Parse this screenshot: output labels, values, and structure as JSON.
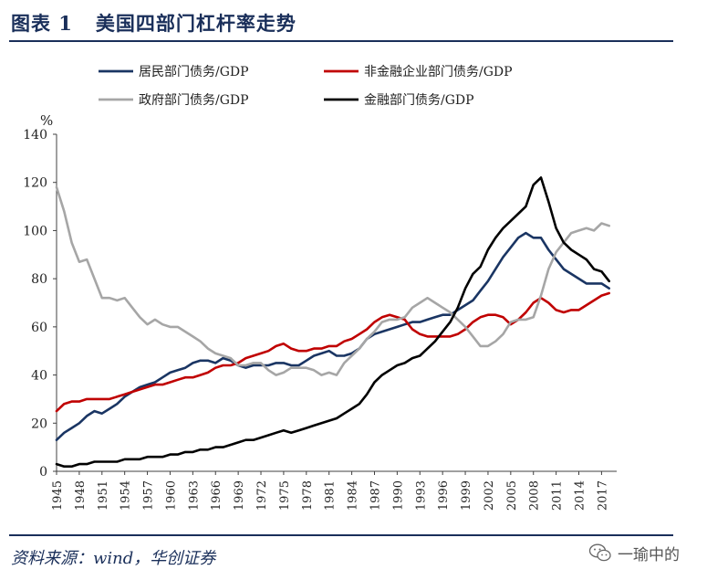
{
  "figure": {
    "label": "图表 1",
    "title": "美国四部门杠杆率走势",
    "source": "资料来源：wind，华创证券",
    "watermark": "一瑜中的"
  },
  "chart_data": {
    "type": "line",
    "title": "",
    "ylabel": "%",
    "xlabel": "",
    "ylim": [
      0,
      140
    ],
    "yticks": [
      0,
      20,
      40,
      60,
      80,
      100,
      120,
      140
    ],
    "xlim": [
      1945,
      2019
    ],
    "xticks": [
      1945,
      1948,
      1951,
      1954,
      1957,
      1960,
      1963,
      1966,
      1969,
      1972,
      1975,
      1978,
      1981,
      1984,
      1987,
      1990,
      1993,
      1996,
      1999,
      2002,
      2005,
      2008,
      2011,
      2014,
      2017
    ],
    "grid": false,
    "legend_position": "top",
    "series": [
      {
        "name": "居民部门债务/GDP",
        "color": "#1a3563",
        "x": [
          1945,
          1946,
          1947,
          1948,
          1949,
          1950,
          1951,
          1952,
          1953,
          1954,
          1955,
          1956,
          1957,
          1958,
          1959,
          1960,
          1961,
          1962,
          1963,
          1964,
          1965,
          1966,
          1967,
          1968,
          1969,
          1970,
          1971,
          1972,
          1973,
          1974,
          1975,
          1976,
          1977,
          1978,
          1979,
          1980,
          1981,
          1982,
          1983,
          1984,
          1985,
          1986,
          1987,
          1988,
          1989,
          1990,
          1991,
          1992,
          1993,
          1994,
          1995,
          1996,
          1997,
          1998,
          1999,
          2000,
          2001,
          2002,
          2003,
          2004,
          2005,
          2006,
          2007,
          2008,
          2009,
          2010,
          2011,
          2012,
          2013,
          2014,
          2015,
          2016,
          2017,
          2018
        ],
        "values": [
          13,
          16,
          18,
          20,
          23,
          25,
          24,
          26,
          28,
          31,
          33,
          35,
          36,
          37,
          39,
          41,
          42,
          43,
          45,
          46,
          46,
          45,
          47,
          46,
          44,
          43,
          44,
          44,
          44,
          45,
          45,
          44,
          44,
          46,
          48,
          49,
          50,
          48,
          48,
          49,
          51,
          55,
          57,
          58,
          59,
          60,
          61,
          62,
          62,
          63,
          64,
          65,
          65,
          67,
          69,
          71,
          75,
          79,
          84,
          89,
          93,
          97,
          99,
          97,
          97,
          92,
          88,
          84,
          82,
          80,
          78,
          78,
          78,
          76
        ]
      },
      {
        "name": "非金融企业部门债务/GDP",
        "color": "#c00000",
        "x": [
          1945,
          1946,
          1947,
          1948,
          1949,
          1950,
          1951,
          1952,
          1953,
          1954,
          1955,
          1956,
          1957,
          1958,
          1959,
          1960,
          1961,
          1962,
          1963,
          1964,
          1965,
          1966,
          1967,
          1968,
          1969,
          1970,
          1971,
          1972,
          1973,
          1974,
          1975,
          1976,
          1977,
          1978,
          1979,
          1980,
          1981,
          1982,
          1983,
          1984,
          1985,
          1986,
          1987,
          1988,
          1989,
          1990,
          1991,
          1992,
          1993,
          1994,
          1995,
          1996,
          1997,
          1998,
          1999,
          2000,
          2001,
          2002,
          2003,
          2004,
          2005,
          2006,
          2007,
          2008,
          2009,
          2010,
          2011,
          2012,
          2013,
          2014,
          2015,
          2016,
          2017,
          2018
        ],
        "values": [
          25,
          28,
          29,
          29,
          30,
          30,
          30,
          30,
          31,
          32,
          33,
          34,
          35,
          36,
          36,
          37,
          38,
          39,
          39,
          40,
          41,
          43,
          44,
          44,
          45,
          47,
          48,
          49,
          50,
          52,
          53,
          51,
          50,
          50,
          51,
          51,
          52,
          52,
          54,
          55,
          57,
          59,
          62,
          64,
          65,
          64,
          63,
          59,
          57,
          56,
          56,
          56,
          56,
          57,
          59,
          62,
          64,
          65,
          65,
          64,
          61,
          63,
          66,
          70,
          72,
          70,
          67,
          66,
          67,
          67,
          69,
          71,
          73,
          74
        ]
      },
      {
        "name": "政府部门债务/GDP",
        "color": "#a6a6a6",
        "x": [
          1945,
          1946,
          1947,
          1948,
          1949,
          1950,
          1951,
          1952,
          1953,
          1954,
          1955,
          1956,
          1957,
          1958,
          1959,
          1960,
          1961,
          1962,
          1963,
          1964,
          1965,
          1966,
          1967,
          1968,
          1969,
          1970,
          1971,
          1972,
          1973,
          1974,
          1975,
          1976,
          1977,
          1978,
          1979,
          1980,
          1981,
          1982,
          1983,
          1984,
          1985,
          1986,
          1987,
          1988,
          1989,
          1990,
          1991,
          1992,
          1993,
          1994,
          1995,
          1996,
          1997,
          1998,
          1999,
          2000,
          2001,
          2002,
          2003,
          2004,
          2005,
          2006,
          2007,
          2008,
          2009,
          2010,
          2011,
          2012,
          2013,
          2014,
          2015,
          2016,
          2017,
          2018
        ],
        "values": [
          118,
          108,
          95,
          87,
          88,
          80,
          72,
          72,
          71,
          72,
          68,
          64,
          61,
          63,
          61,
          60,
          60,
          58,
          56,
          54,
          51,
          49,
          48,
          47,
          44,
          44,
          45,
          45,
          42,
          40,
          41,
          43,
          43,
          43,
          42,
          40,
          41,
          40,
          45,
          48,
          51,
          55,
          58,
          62,
          63,
          63,
          64,
          68,
          70,
          72,
          70,
          68,
          66,
          63,
          60,
          56,
          52,
          52,
          54,
          57,
          62,
          63,
          63,
          64,
          73,
          84,
          91,
          95,
          99,
          100,
          101,
          100,
          103,
          102
        ]
      },
      {
        "name": "金融部门债务/GDP",
        "color": "#000000",
        "x": [
          1945,
          1946,
          1947,
          1948,
          1949,
          1950,
          1951,
          1952,
          1953,
          1954,
          1955,
          1956,
          1957,
          1958,
          1959,
          1960,
          1961,
          1962,
          1963,
          1964,
          1965,
          1966,
          1967,
          1968,
          1969,
          1970,
          1971,
          1972,
          1973,
          1974,
          1975,
          1976,
          1977,
          1978,
          1979,
          1980,
          1981,
          1982,
          1983,
          1984,
          1985,
          1986,
          1987,
          1988,
          1989,
          1990,
          1991,
          1992,
          1993,
          1994,
          1995,
          1996,
          1997,
          1998,
          1999,
          2000,
          2001,
          2002,
          2003,
          2004,
          2005,
          2006,
          2007,
          2008,
          2009,
          2010,
          2011,
          2012,
          2013,
          2014,
          2015,
          2016,
          2017,
          2018
        ],
        "values": [
          3,
          2,
          2,
          3,
          3,
          4,
          4,
          4,
          4,
          5,
          5,
          5,
          6,
          6,
          6,
          7,
          7,
          8,
          8,
          9,
          9,
          10,
          10,
          11,
          12,
          13,
          13,
          14,
          15,
          16,
          17,
          16,
          17,
          18,
          19,
          20,
          21,
          22,
          24,
          26,
          28,
          32,
          37,
          40,
          42,
          44,
          45,
          47,
          48,
          51,
          54,
          58,
          62,
          68,
          76,
          82,
          85,
          92,
          97,
          101,
          104,
          107,
          110,
          119,
          122,
          112,
          101,
          95,
          92,
          90,
          88,
          84,
          83,
          79
        ]
      }
    ]
  }
}
